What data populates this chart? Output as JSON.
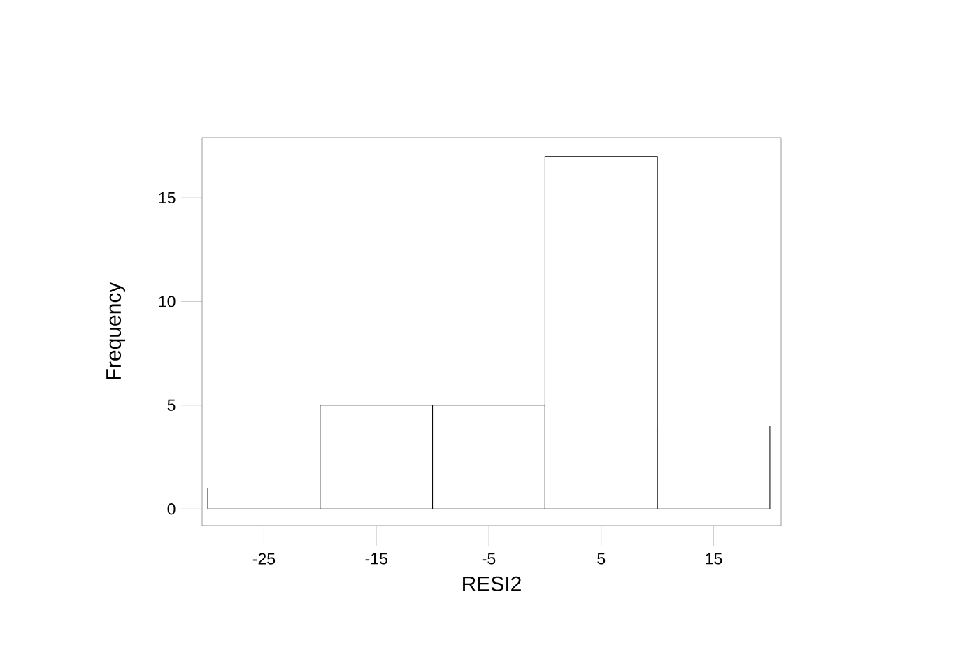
{
  "chart_data": {
    "type": "histogram",
    "xlabel": "RESI2",
    "ylabel": "Frequency",
    "bins": [
      -30,
      -20,
      -10,
      0,
      10,
      20
    ],
    "values": [
      1,
      5,
      5,
      17,
      4
    ],
    "color": "#000000",
    "xlim": [
      -30.5,
      21
    ],
    "ylim": [
      -0.8,
      17.9
    ],
    "xticks": [
      -25,
      -15,
      -5,
      5,
      15
    ],
    "yticks": [
      0,
      5,
      10,
      15
    ],
    "grid": false
  }
}
